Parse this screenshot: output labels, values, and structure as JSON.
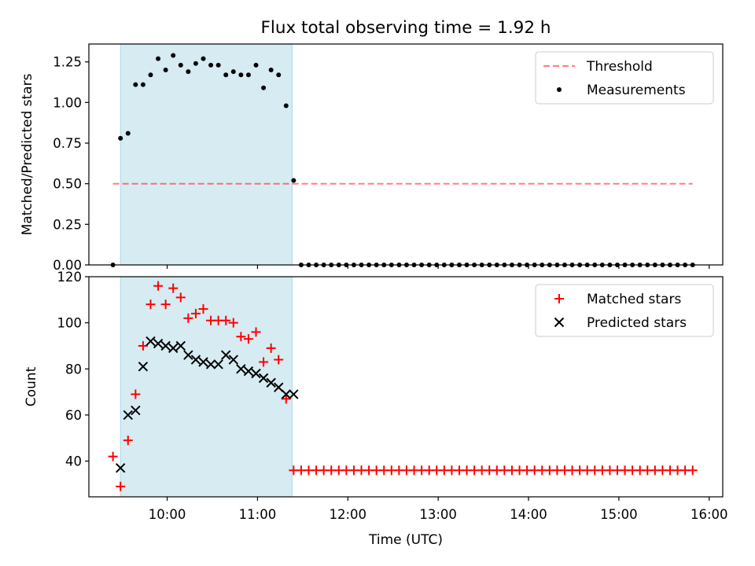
{
  "title": "Flux total observing time = 1.92 h",
  "colors": {
    "shade": "#add8e6",
    "threshold": "#ff0000",
    "matched": "#ff0000",
    "predicted": "#000000",
    "measurements": "#000000"
  },
  "chart_data": [
    {
      "type": "scatter",
      "ylabel": "Matched/Predicted stars",
      "ylim": [
        0,
        1.36
      ],
      "xlim": [
        "09:08",
        "16:09"
      ],
      "yticks": [
        "0.00",
        "0.25",
        "0.50",
        "0.75",
        "1.00",
        "1.25"
      ],
      "shaded_interval": [
        "09:29",
        "11:23"
      ],
      "legend": {
        "position": "upper right",
        "entries": [
          "Threshold",
          "Measurements"
        ]
      },
      "threshold": {
        "name": "Threshold",
        "style": "dashed",
        "x": [
          "09:24",
          "15:49"
        ],
        "y": 0.5
      },
      "series": [
        {
          "name": "Measurements",
          "marker": "dot",
          "x": [
            "09:24",
            "09:29",
            "09:34",
            "09:39",
            "09:44",
            "09:49",
            "09:54",
            "09:59",
            "10:04",
            "10:09",
            "10:14",
            "10:19",
            "10:24",
            "10:29",
            "10:34",
            "10:39",
            "10:44",
            "10:49",
            "10:54",
            "10:59",
            "11:04",
            "11:09",
            "11:14",
            "11:19",
            "11:24",
            "11:29",
            "11:34",
            "11:39",
            "11:44",
            "11:49",
            "11:54",
            "11:59",
            "12:04",
            "12:09",
            "12:14",
            "12:19",
            "12:24",
            "12:29",
            "12:34",
            "12:39",
            "12:44",
            "12:49",
            "12:54",
            "12:59",
            "13:04",
            "13:09",
            "13:14",
            "13:19",
            "13:24",
            "13:29",
            "13:34",
            "13:39",
            "13:44",
            "13:49",
            "13:54",
            "13:59",
            "14:04",
            "14:09",
            "14:14",
            "14:19",
            "14:24",
            "14:29",
            "14:34",
            "14:39",
            "14:44",
            "14:49",
            "14:54",
            "14:59",
            "15:04",
            "15:09",
            "15:14",
            "15:19",
            "15:24",
            "15:29",
            "15:34",
            "15:39",
            "15:44",
            "15:49"
          ],
          "y": [
            0,
            0.78,
            0.81,
            1.11,
            1.11,
            1.17,
            1.27,
            1.2,
            1.29,
            1.23,
            1.19,
            1.24,
            1.27,
            1.23,
            1.23,
            1.17,
            1.19,
            1.17,
            1.17,
            1.23,
            1.09,
            1.2,
            1.17,
            0.98,
            0.52,
            0,
            0,
            0,
            0,
            0,
            0,
            0,
            0,
            0,
            0,
            0,
            0,
            0,
            0,
            0,
            0,
            0,
            0,
            0,
            0,
            0,
            0,
            0,
            0,
            0,
            0,
            0,
            0,
            0,
            0,
            0,
            0,
            0,
            0,
            0,
            0,
            0,
            0,
            0,
            0,
            0,
            0,
            0,
            0,
            0,
            0,
            0,
            0,
            0,
            0,
            0,
            0,
            0
          ]
        }
      ]
    },
    {
      "type": "scatter",
      "xlabel": "Time (UTC)",
      "ylabel": "Count",
      "ylim": [
        24.5,
        120
      ],
      "xlim": [
        "09:08",
        "16:09"
      ],
      "xticks": [
        "10:00",
        "11:00",
        "12:00",
        "13:00",
        "14:00",
        "15:00",
        "16:00"
      ],
      "yticks": [
        "40",
        "60",
        "80",
        "100",
        "120"
      ],
      "shaded_interval": [
        "09:29",
        "11:23"
      ],
      "legend": {
        "position": "upper right",
        "entries": [
          "Matched stars",
          "Predicted stars"
        ]
      },
      "series": [
        {
          "name": "Matched stars",
          "marker": "plus",
          "x": [
            "09:24",
            "09:29",
            "09:34",
            "09:39",
            "09:44",
            "09:49",
            "09:54",
            "09:59",
            "10:04",
            "10:09",
            "10:14",
            "10:19",
            "10:24",
            "10:29",
            "10:34",
            "10:39",
            "10:44",
            "10:49",
            "10:54",
            "10:59",
            "11:04",
            "11:09",
            "11:14",
            "11:19",
            "11:24",
            "11:29",
            "11:34",
            "11:39",
            "11:44",
            "11:49",
            "11:54",
            "11:59",
            "12:04",
            "12:09",
            "12:14",
            "12:19",
            "12:24",
            "12:29",
            "12:34",
            "12:39",
            "12:44",
            "12:49",
            "12:54",
            "12:59",
            "13:04",
            "13:09",
            "13:14",
            "13:19",
            "13:24",
            "13:29",
            "13:34",
            "13:39",
            "13:44",
            "13:49",
            "13:54",
            "13:59",
            "14:04",
            "14:09",
            "14:14",
            "14:19",
            "14:24",
            "14:29",
            "14:34",
            "14:39",
            "14:44",
            "14:49",
            "14:54",
            "14:59",
            "15:04",
            "15:09",
            "15:14",
            "15:19",
            "15:24",
            "15:29",
            "15:34",
            "15:39",
            "15:44",
            "15:49"
          ],
          "y": [
            42,
            29,
            49,
            69,
            90,
            108,
            116,
            108,
            115,
            111,
            102,
            104,
            106,
            101,
            101,
            101,
            100,
            94,
            93,
            96,
            83,
            89,
            84,
            67,
            36,
            36,
            36,
            36,
            36,
            36,
            36,
            36,
            36,
            36,
            36,
            36,
            36,
            36,
            36,
            36,
            36,
            36,
            36,
            36,
            36,
            36,
            36,
            36,
            36,
            36,
            36,
            36,
            36,
            36,
            36,
            36,
            36,
            36,
            36,
            36,
            36,
            36,
            36,
            36,
            36,
            36,
            36,
            36,
            36,
            36,
            36,
            36,
            36,
            36,
            36,
            36,
            36,
            36
          ]
        },
        {
          "name": "Predicted stars",
          "marker": "x",
          "x": [
            "09:29",
            "09:34",
            "09:39",
            "09:44",
            "09:49",
            "09:54",
            "09:59",
            "10:04",
            "10:09",
            "10:14",
            "10:19",
            "10:24",
            "10:29",
            "10:34",
            "10:39",
            "10:44",
            "10:49",
            "10:54",
            "10:59",
            "11:04",
            "11:09",
            "11:14",
            "11:19",
            "11:24"
          ],
          "y": [
            37,
            60,
            62,
            81,
            92,
            91,
            90,
            89,
            90,
            86,
            84,
            83,
            82,
            82,
            86,
            84,
            80,
            79,
            78,
            76,
            74,
            72,
            69,
            69
          ]
        }
      ]
    }
  ]
}
